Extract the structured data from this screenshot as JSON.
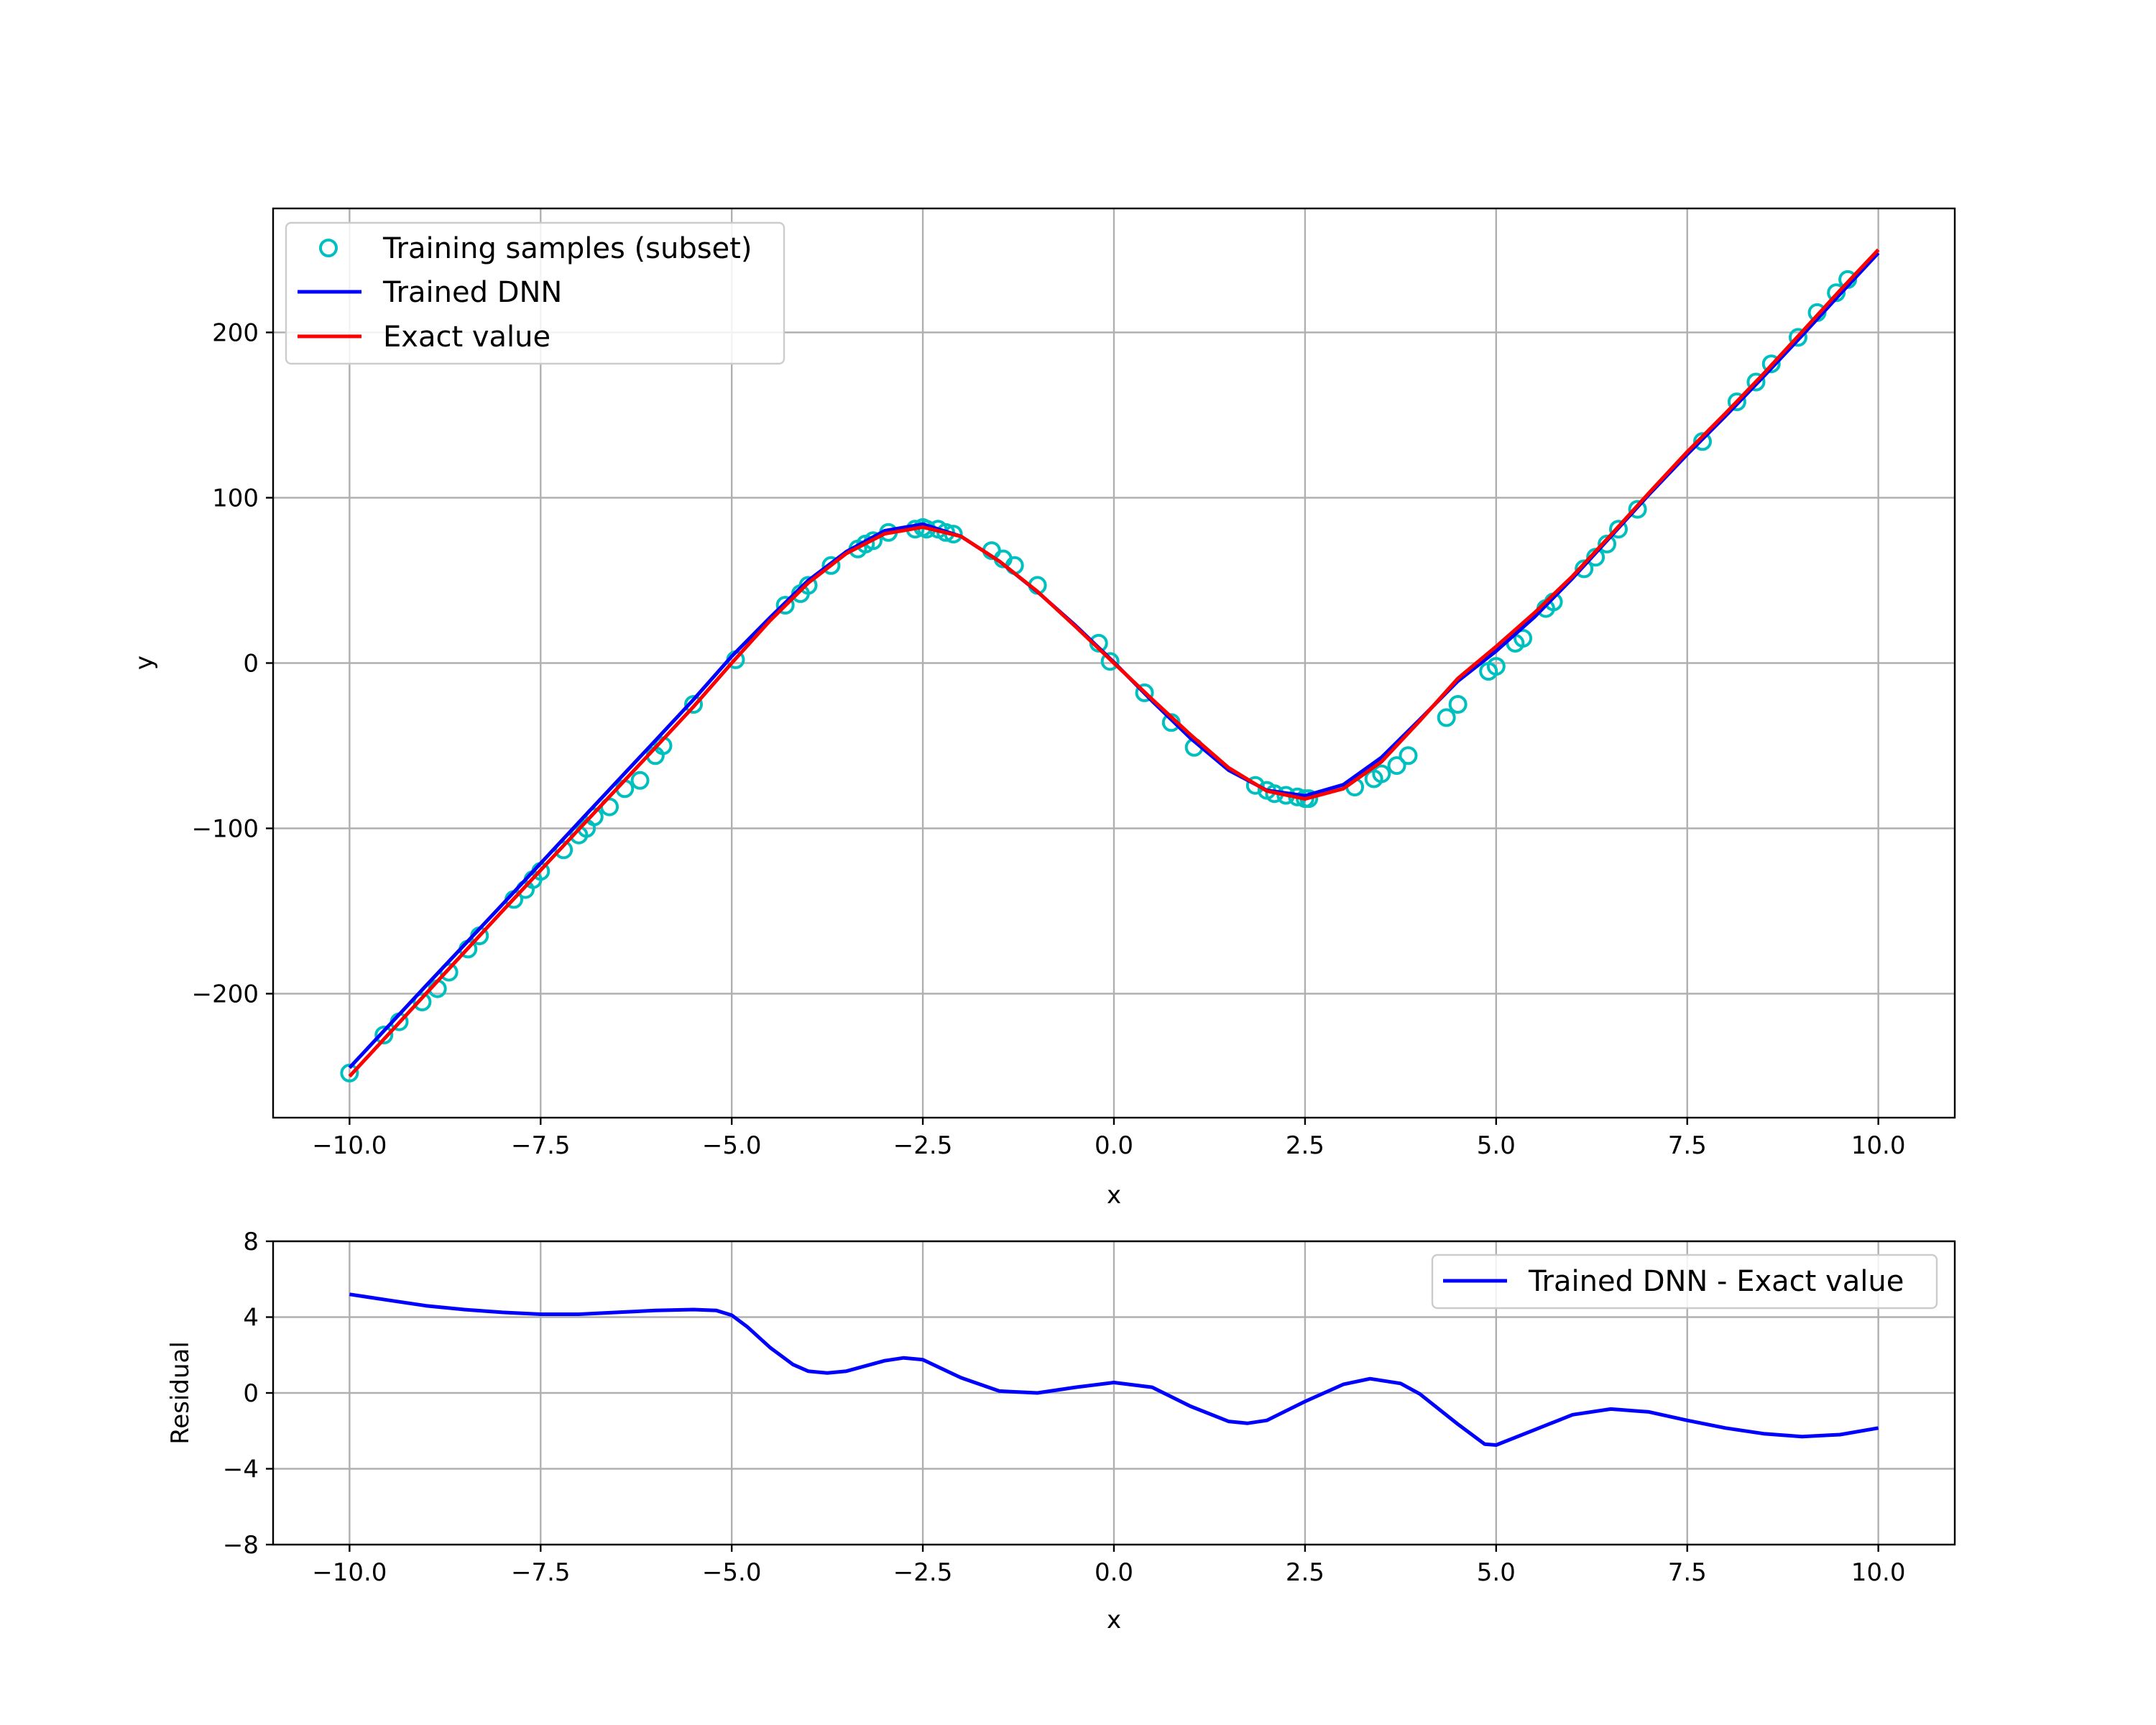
{
  "chart_data": [
    {
      "type": "line",
      "xlabel": "x",
      "ylabel": "y",
      "xlim": [
        -11,
        11
      ],
      "ylim": [
        -275,
        275
      ],
      "xticks": [
        -10.0,
        -7.5,
        -5.0,
        -2.5,
        0.0,
        2.5,
        5.0,
        7.5,
        10.0
      ],
      "xtick_labels": [
        "−10.0",
        "−7.5",
        "−5.0",
        "−2.5",
        "0.0",
        "2.5",
        "5.0",
        "7.5",
        "10.0"
      ],
      "yticks": [
        -200,
        -100,
        0,
        100,
        200
      ],
      "ytick_labels": [
        "−200",
        "−100",
        "0",
        "100",
        "200"
      ],
      "grid": true,
      "legend_position": "upper-left",
      "series": [
        {
          "name": "Training samples (subset)",
          "style": "markers",
          "color": "#00bfbf",
          "x": [
            -10.0,
            -9.55,
            -9.35,
            -9.05,
            -8.85,
            -8.7,
            -8.45,
            -8.3,
            -7.85,
            -7.7,
            -7.6,
            -7.5,
            -7.2,
            -7.0,
            -6.9,
            -6.8,
            -6.6,
            -6.4,
            -6.2,
            -6.0,
            -5.9,
            -5.5,
            -4.95,
            -4.3,
            -4.1,
            -4.0,
            -3.7,
            -3.35,
            -3.25,
            -3.15,
            -2.95,
            -2.6,
            -2.5,
            -2.45,
            -2.3,
            -2.2,
            -2.1,
            -1.6,
            -1.45,
            -1.3,
            -1.0,
            -0.2,
            -0.05,
            0.4,
            0.75,
            1.05,
            1.85,
            2.0,
            2.1,
            2.25,
            2.4,
            2.5,
            2.55,
            3.15,
            3.4,
            3.5,
            3.7,
            3.85,
            4.35,
            4.5,
            4.9,
            5.0,
            5.25,
            5.35,
            5.65,
            5.75,
            6.15,
            6.3,
            6.45,
            6.6,
            6.85,
            7.7,
            8.15,
            8.4,
            8.6,
            8.95,
            9.2,
            9.45,
            9.6
          ],
          "y": [
            -248,
            -225,
            -217,
            -205,
            -197,
            -187,
            -173,
            -165,
            -143,
            -137,
            -131,
            -126,
            -113,
            -104,
            -100,
            -93,
            -87,
            -76,
            -71,
            -56,
            -50,
            -25,
            2,
            35,
            42,
            47,
            59,
            69,
            72,
            74,
            79,
            81,
            82,
            81,
            81,
            79,
            78,
            68,
            63,
            59,
            47,
            12,
            1,
            -18,
            -36,
            -51,
            -74,
            -77,
            -79,
            -80,
            -81,
            -82,
            -82,
            -75,
            -70,
            -67,
            -62,
            -56,
            -33,
            -25,
            -5,
            -2,
            12,
            15,
            33,
            37,
            57,
            64,
            72,
            81,
            93,
            134,
            158,
            170,
            181,
            197,
            212,
            224,
            232
          ]
        },
        {
          "name": "Trained DNN",
          "style": "line",
          "color": "#0000ff",
          "x": [
            -10.0,
            -9.0,
            -8.0,
            -7.0,
            -6.0,
            -5.5,
            -5.0,
            -4.5,
            -4.0,
            -3.5,
            -3.0,
            -2.5,
            -2.0,
            -1.5,
            -1.0,
            -0.5,
            0.0,
            0.5,
            1.0,
            1.5,
            2.0,
            2.5,
            3.0,
            3.5,
            4.0,
            4.5,
            5.0,
            5.5,
            6.0,
            6.5,
            7.0,
            7.5,
            8.0,
            8.5,
            9.0,
            9.5,
            10.0
          ],
          "y": [
            -244.8,
            -195.2,
            -146.0,
            -96.3,
            -46.9,
            -22.1,
            4.1,
            27.5,
            49.9,
            67.4,
            80.0,
            84.0,
            76.6,
            61.6,
            43.1,
            22.6,
            0.5,
            -23.0,
            -45.4,
            -64.8,
            -77.0,
            -80.3,
            -73.6,
            -57.1,
            -34.2,
            -10.9,
            7.2,
            27.8,
            51.3,
            76.6,
            101.9,
            126.2,
            149.4,
            173.4,
            198.0,
            223.2,
            248.1
          ]
        },
        {
          "name": "Exact value",
          "style": "line",
          "color": "#ff0000",
          "x": [
            -10.0,
            -9.0,
            -8.0,
            -7.0,
            -6.0,
            -5.5,
            -5.0,
            -4.5,
            -4.0,
            -3.5,
            -3.0,
            -2.5,
            -2.0,
            -1.5,
            -1.0,
            -0.5,
            0.0,
            0.5,
            1.0,
            1.5,
            2.0,
            2.5,
            3.0,
            3.5,
            4.0,
            4.5,
            5.0,
            5.5,
            6.0,
            6.5,
            7.0,
            7.5,
            8.0,
            8.5,
            9.0,
            9.5,
            10.0
          ],
          "y": [
            -250,
            -200,
            -150,
            -100.5,
            -51.2,
            -26.4,
            0.0,
            25.6,
            48.4,
            66.3,
            78.2,
            82.2,
            76.6,
            61.6,
            43.3,
            21.9,
            0.0,
            -21.9,
            -43.3,
            -63.3,
            -77.4,
            -82.2,
            -76.0,
            -59.7,
            -35.0,
            -9.3,
            10.0,
            30.3,
            52.6,
            77.5,
            102.9,
            127.8,
            151.0,
            175.1,
            200.2,
            225.5,
            250.0
          ]
        }
      ]
    },
    {
      "type": "line",
      "xlabel": "x",
      "ylabel": "Residual",
      "xlim": [
        -11,
        11
      ],
      "ylim": [
        -8,
        8
      ],
      "xticks": [
        -10.0,
        -7.5,
        -5.0,
        -2.5,
        0.0,
        2.5,
        5.0,
        7.5,
        10.0
      ],
      "xtick_labels": [
        "−10.0",
        "−7.5",
        "−5.0",
        "−2.5",
        "0.0",
        "2.5",
        "5.0",
        "7.5",
        "10.0"
      ],
      "yticks": [
        -8,
        -4,
        0,
        4,
        8
      ],
      "ytick_labels": [
        "−8",
        "−4",
        "0",
        "4",
        "8"
      ],
      "grid": true,
      "legend_position": "upper-right",
      "series": [
        {
          "name": "Trained DNN - Exact value",
          "style": "line",
          "color": "#0000ff",
          "x": [
            -10.0,
            -9.5,
            -9.0,
            -8.5,
            -8.0,
            -7.5,
            -7.0,
            -6.5,
            -6.0,
            -5.5,
            -5.2,
            -5.0,
            -4.8,
            -4.5,
            -4.2,
            -4.0,
            -3.75,
            -3.5,
            -3.0,
            -2.75,
            -2.5,
            -2.0,
            -1.5,
            -1.0,
            -0.5,
            0.0,
            0.5,
            1.0,
            1.5,
            1.75,
            2.0,
            2.5,
            3.0,
            3.35,
            3.75,
            4.0,
            4.5,
            4.85,
            5.0,
            5.5,
            6.0,
            6.5,
            7.0,
            7.5,
            8.0,
            8.5,
            9.0,
            9.5,
            10.0
          ],
          "y": [
            5.2,
            4.9,
            4.6,
            4.4,
            4.25,
            4.15,
            4.15,
            4.25,
            4.35,
            4.4,
            4.35,
            4.1,
            3.5,
            2.4,
            1.5,
            1.15,
            1.05,
            1.15,
            1.7,
            1.85,
            1.75,
            0.8,
            0.1,
            0.0,
            0.3,
            0.55,
            0.3,
            -0.7,
            -1.5,
            -1.6,
            -1.45,
            -0.45,
            0.45,
            0.75,
            0.5,
            -0.05,
            -1.65,
            -2.7,
            -2.75,
            -1.95,
            -1.15,
            -0.85,
            -1.0,
            -1.45,
            -1.85,
            -2.15,
            -2.3,
            -2.2,
            -1.85
          ]
        }
      ]
    }
  ]
}
